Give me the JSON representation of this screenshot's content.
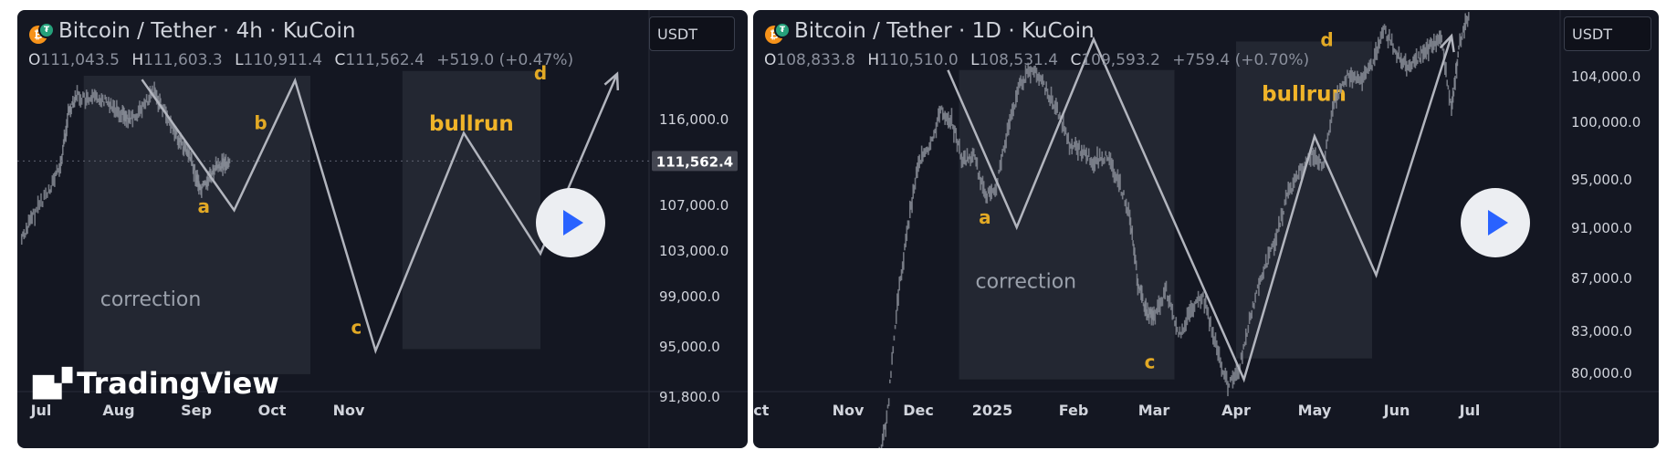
{
  "chart_data": [
    {
      "type": "line",
      "title": "Bitcoin / Tether · 4h · KuCoin",
      "ohlc": {
        "o_label": "O",
        "o": "111,043.5",
        "h_label": "H",
        "h": "111,603.3",
        "l_label": "L",
        "l": "110,911.4",
        "c_label": "C",
        "c": "111,562.4",
        "change": "+519.0 (+0.47%)"
      },
      "currency": "USDT",
      "current_price": 111562.4,
      "current_price_label": "111,562.4",
      "x_ticks": [
        "Jul",
        "Aug",
        "Sep",
        "Oct",
        "Nov"
      ],
      "x_tick_values": [
        0,
        1,
        2,
        3,
        4
      ],
      "xlim": [
        -0.25,
        8.8
      ],
      "y_ticks": [
        "116,000.0",
        "107,000.0",
        "103,000.0",
        "99,000.0",
        "95,000.0",
        "91,800.0"
      ],
      "y_tick_values": [
        116000,
        107000,
        103000,
        99000,
        95000,
        91800
      ],
      "price_series": [
        {
          "x": -0.25,
          "y": 104000
        },
        {
          "x": -0.1,
          "y": 106000
        },
        {
          "x": 0.1,
          "y": 108500
        },
        {
          "x": 0.25,
          "y": 111000
        },
        {
          "x": 0.35,
          "y": 116500
        },
        {
          "x": 0.45,
          "y": 118500
        },
        {
          "x": 0.6,
          "y": 117800
        },
        {
          "x": 0.75,
          "y": 118200
        },
        {
          "x": 0.9,
          "y": 117500
        },
        {
          "x": 1.05,
          "y": 116500
        },
        {
          "x": 1.15,
          "y": 115800
        },
        {
          "x": 1.3,
          "y": 117000
        },
        {
          "x": 1.45,
          "y": 118700
        },
        {
          "x": 1.55,
          "y": 117500
        },
        {
          "x": 1.7,
          "y": 115000
        },
        {
          "x": 1.8,
          "y": 113500
        },
        {
          "x": 1.9,
          "y": 112200
        },
        {
          "x": 2.0,
          "y": 110000
        },
        {
          "x": 2.05,
          "y": 108500
        },
        {
          "x": 2.15,
          "y": 109500
        },
        {
          "x": 2.25,
          "y": 110800
        },
        {
          "x": 2.35,
          "y": 111200
        },
        {
          "x": 2.45,
          "y": 111562
        }
      ],
      "projection": [
        {
          "x": 1.3,
          "y": 120100
        },
        {
          "x": 2.5,
          "y": 106500
        },
        {
          "x": 3.3,
          "y": 120000
        },
        {
          "x": 4.35,
          "y": 94700
        },
        {
          "x": 5.5,
          "y": 114500
        },
        {
          "x": 6.5,
          "y": 102700
        },
        {
          "x": 7.5,
          "y": 120700
        }
      ],
      "zones": [
        {
          "label": "correction",
          "x0": 0.55,
          "x1": 3.5,
          "y0": 93200,
          "y1": 120500
        },
        {
          "label": "bullrun",
          "x0": 4.7,
          "x1": 6.5,
          "y0": 94800,
          "y1": 121000
        }
      ],
      "wave_labels": [
        {
          "label": "a",
          "x": 2.1,
          "y": 106300
        },
        {
          "label": "b",
          "x": 2.85,
          "y": 114900
        },
        {
          "label": "c",
          "x": 4.1,
          "y": 96000
        },
        {
          "label": "d",
          "x": 6.5,
          "y": 120100
        }
      ],
      "watermark": "TradingView"
    },
    {
      "type": "line",
      "title": "Bitcoin / Tether · 1D · KuCoin",
      "ohlc": {
        "o_label": "O",
        "o": "108,833.8",
        "h_label": "H",
        "h": "110,510.0",
        "l_label": "L",
        "l": "108,531.4",
        "c_label": "C",
        "c": "109,593.2",
        "change": "+759.4 (+0.70%)"
      },
      "currency": "USDT",
      "x_ticks": [
        "Oct",
        "Nov",
        "Dec",
        "2025",
        "Feb",
        "Mar",
        "Apr",
        "May",
        "Jun",
        "Jul"
      ],
      "x_tick_values": [
        0,
        1,
        2,
        3,
        4,
        5,
        6,
        7,
        8,
        9
      ],
      "xlim": [
        0,
        9.1
      ],
      "y_ticks": [
        "104,000.0",
        "100,000.0",
        "95,000.0",
        "91,000.0",
        "87,000.0",
        "83,000.0",
        "80,000.0"
      ],
      "y_tick_values": [
        104000,
        100000,
        95000,
        91000,
        87000,
        83000,
        80000
      ],
      "price_series": [
        {
          "x": 1.4,
          "y": 73000
        },
        {
          "x": 1.55,
          "y": 76500
        },
        {
          "x": 1.7,
          "y": 85000
        },
        {
          "x": 1.85,
          "y": 91000
        },
        {
          "x": 2.0,
          "y": 96500
        },
        {
          "x": 2.15,
          "y": 97500
        },
        {
          "x": 2.3,
          "y": 101000
        },
        {
          "x": 2.45,
          "y": 100000
        },
        {
          "x": 2.6,
          "y": 96500
        },
        {
          "x": 2.75,
          "y": 97000
        },
        {
          "x": 2.9,
          "y": 93500
        },
        {
          "x": 3.05,
          "y": 94500
        },
        {
          "x": 3.2,
          "y": 99500
        },
        {
          "x": 3.35,
          "y": 103500
        },
        {
          "x": 3.5,
          "y": 104500
        },
        {
          "x": 3.65,
          "y": 103000
        },
        {
          "x": 3.8,
          "y": 101000
        },
        {
          "x": 3.95,
          "y": 98000
        },
        {
          "x": 4.1,
          "y": 97500
        },
        {
          "x": 4.25,
          "y": 96500
        },
        {
          "x": 4.4,
          "y": 97000
        },
        {
          "x": 4.55,
          "y": 95000
        },
        {
          "x": 4.7,
          "y": 92000
        },
        {
          "x": 4.8,
          "y": 86500
        },
        {
          "x": 4.9,
          "y": 84500
        },
        {
          "x": 5.0,
          "y": 84000
        },
        {
          "x": 5.15,
          "y": 86000
        },
        {
          "x": 5.3,
          "y": 82500
        },
        {
          "x": 5.45,
          "y": 84500
        },
        {
          "x": 5.6,
          "y": 85500
        },
        {
          "x": 5.75,
          "y": 82000
        },
        {
          "x": 5.9,
          "y": 79000
        },
        {
          "x": 6.05,
          "y": 80500
        },
        {
          "x": 6.2,
          "y": 84500
        },
        {
          "x": 6.35,
          "y": 87500
        },
        {
          "x": 6.5,
          "y": 90000
        },
        {
          "x": 6.65,
          "y": 93500
        },
        {
          "x": 6.8,
          "y": 95500
        },
        {
          "x": 6.95,
          "y": 97000
        },
        {
          "x": 7.1,
          "y": 96000
        },
        {
          "x": 7.25,
          "y": 102000
        },
        {
          "x": 7.4,
          "y": 104000
        },
        {
          "x": 7.55,
          "y": 103500
        },
        {
          "x": 7.7,
          "y": 105000
        },
        {
          "x": 7.85,
          "y": 108000
        },
        {
          "x": 8.0,
          "y": 106000
        },
        {
          "x": 8.15,
          "y": 104500
        },
        {
          "x": 8.3,
          "y": 105500
        },
        {
          "x": 8.45,
          "y": 106500
        },
        {
          "x": 8.6,
          "y": 107500
        },
        {
          "x": 8.75,
          "y": 101000
        },
        {
          "x": 8.85,
          "y": 106500
        },
        {
          "x": 9.0,
          "y": 109593
        }
      ],
      "projection": [
        {
          "x": 2.4,
          "y": 104500
        },
        {
          "x": 3.3,
          "y": 91000
        },
        {
          "x": 4.25,
          "y": 107200
        },
        {
          "x": 6.1,
          "y": 79500
        },
        {
          "x": 7.0,
          "y": 98700
        },
        {
          "x": 7.75,
          "y": 87200
        },
        {
          "x": 8.75,
          "y": 107500
        }
      ],
      "zones": [
        {
          "label": "correction",
          "x0": 2.55,
          "x1": 5.25,
          "y0": 79500,
          "y1": 104500
        },
        {
          "label": "bullrun",
          "x0": 6.0,
          "x1": 7.7,
          "y0": 81000,
          "y1": 107000
        }
      ],
      "wave_labels": [
        {
          "label": "a",
          "x": 2.9,
          "y": 91300
        },
        {
          "label": "c",
          "x": 4.95,
          "y": 80300
        },
        {
          "label": "d",
          "x": 7.15,
          "y": 106600
        }
      ]
    }
  ]
}
